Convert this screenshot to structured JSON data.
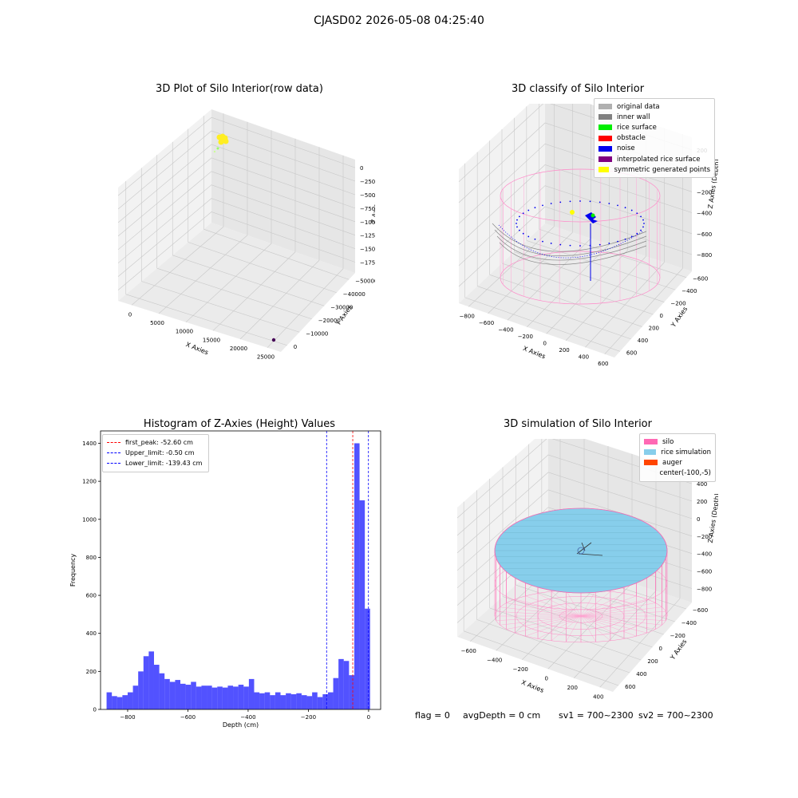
{
  "suptitle": "CJASD02 2026-05-08 04:25:40",
  "plot1": {
    "title": "3D Plot of Silo Interior(row data)",
    "xlabel": "X Axies",
    "ylabel": "Y Axies",
    "zlabel": "Z Axies (Depth)",
    "xticks": [
      "0",
      "5000",
      "10000",
      "15000",
      "20000",
      "25000"
    ],
    "yticks": [
      "0",
      "−10000",
      "−20000",
      "−30000",
      "−40000",
      "−50000"
    ],
    "zticks": [
      "0",
      "−2500",
      "−5000",
      "−7500",
      "−10000",
      "−12500",
      "−15000",
      "−17500"
    ]
  },
  "plot2": {
    "title": "3D classify of Silo Interior",
    "xlabel": "X Axies",
    "ylabel": "Y Axies",
    "zlabel": "Z Axies (Depth)",
    "xticks": [
      "−800",
      "−600",
      "−400",
      "−200",
      "0",
      "200",
      "400",
      "600"
    ],
    "yticks": [
      "600",
      "400",
      "200",
      "0",
      "−200",
      "−400",
      "−600"
    ],
    "zticks": [
      "200",
      "0",
      "−200",
      "−400",
      "−600",
      "−800"
    ],
    "legend": [
      {
        "label": "original data",
        "color": "#b0b0b0"
      },
      {
        "label": "inner wall",
        "color": "#808080"
      },
      {
        "label": "rice surface",
        "color": "#00ee00"
      },
      {
        "label": "obstacle",
        "color": "#ff0000"
      },
      {
        "label": "noise",
        "color": "#0000ee"
      },
      {
        "label": "interpolated rice surface",
        "color": "#800080"
      },
      {
        "label": "symmetric generated points",
        "color": "#ffff00"
      }
    ]
  },
  "chart_data": [
    {
      "type": "histogram",
      "title": "Histogram of Z-Axies (Height) Values",
      "xlabel": "Depth (cm)",
      "ylabel": "Frequency",
      "bar_color": "#0000ff",
      "bin_start": -870,
      "bin_width": 17.5,
      "counts": [
        90,
        70,
        65,
        75,
        90,
        125,
        200,
        280,
        305,
        235,
        190,
        160,
        145,
        155,
        135,
        130,
        145,
        120,
        125,
        125,
        115,
        120,
        115,
        125,
        120,
        130,
        120,
        160,
        90,
        85,
        90,
        75,
        90,
        75,
        85,
        80,
        85,
        75,
        70,
        90,
        65,
        80,
        90,
        165,
        265,
        255,
        180,
        1400,
        1100,
        530
      ],
      "xticks": [
        "−800",
        "−600",
        "−400",
        "−200",
        "0"
      ],
      "yticks": [
        "0",
        "200",
        "400",
        "600",
        "800",
        "1000",
        "1200",
        "1400"
      ],
      "xlim": [
        -890,
        40
      ],
      "ylim": [
        0,
        1465
      ],
      "vlines": [
        {
          "label": "first_peak: -52.60 cm",
          "x": -52.6,
          "color": "#ff0000"
        },
        {
          "label": "Upper_limit: -0.50 cm",
          "x": -0.5,
          "color": "#0000ff"
        },
        {
          "label": "Lower_limit: -139.43 cm",
          "x": -139.43,
          "color": "#0000ff"
        }
      ],
      "legend_position": "upper-left"
    }
  ],
  "plot4": {
    "title": "3D simulation of Silo Interior",
    "xlabel": "X Axies",
    "ylabel": "Y Axies",
    "zlabel": "Z Axies (Depth)",
    "xticks": [
      "−600",
      "−400",
      "−200",
      "0",
      "200",
      "400"
    ],
    "yticks": [
      "600",
      "400",
      "200",
      "0",
      "−200",
      "−400",
      "−600"
    ],
    "zticks": [
      "400",
      "200",
      "0",
      "−200",
      "−400",
      "−600",
      "−800"
    ],
    "legend": [
      {
        "label": "silo",
        "color": "#ff69b4"
      },
      {
        "label": "rice simulation",
        "color": "#87ceeb"
      },
      {
        "label": "auger",
        "color": "#ff4500"
      },
      {
        "label": "center(-100,-5)",
        "color": ""
      }
    ]
  },
  "status": {
    "flag": "flag = 0",
    "avg_depth": "avgDepth = 0 cm",
    "sv1": "sv1 = 700~2300",
    "sv2": "sv2 = 700~2300"
  }
}
